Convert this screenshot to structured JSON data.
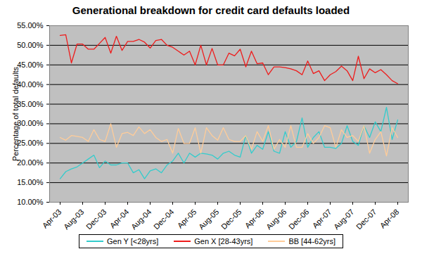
{
  "chart_data": {
    "type": "line",
    "title": "Generational breakdown for credit card defaults loaded",
    "y_label": "Percentage of total defaults",
    "categories": [
      "Apr-03",
      null,
      null,
      null,
      "Aug-03",
      null,
      null,
      null,
      "Dec-03",
      null,
      null,
      null,
      "Apr-04",
      null,
      null,
      null,
      "Aug-04",
      null,
      null,
      null,
      "Dec-04",
      null,
      null,
      null,
      "Apr-05",
      null,
      null,
      null,
      "Aug-05",
      null,
      null,
      null,
      "Dec-05",
      null,
      null,
      null,
      "Apr-06",
      null,
      null,
      null,
      "Aug-06",
      null,
      null,
      null,
      "Dec-06",
      null,
      null,
      null,
      "Apr-07",
      null,
      null,
      null,
      "Aug-07",
      null,
      null,
      null,
      "Dec-07",
      null,
      null,
      null,
      "Apr-08"
    ],
    "series": [
      {
        "name": "Gen Y [<28yrs]",
        "color": "#33cccc",
        "values": [
          16,
          17.8,
          18.5,
          19,
          20,
          21,
          22,
          18.8,
          20.5,
          19.5,
          19.5,
          20,
          20,
          17.5,
          18.3,
          16,
          18,
          18.5,
          17.5,
          19.5,
          20.5,
          22.5,
          20,
          22.5,
          21.5,
          22.5,
          22.3,
          22,
          21,
          22.5,
          23,
          22,
          21.5,
          27,
          22.5,
          24.5,
          23.5,
          28,
          23,
          22.5,
          28,
          24,
          25.5,
          31.5,
          24,
          26.5,
          28,
          24,
          24,
          23.7,
          25,
          29.5,
          25.5,
          24.5,
          29.5,
          26.5,
          30.5,
          28,
          34.2,
          26,
          31
        ]
      },
      {
        "name": "Gen X [28-43yrs]",
        "color": "#ee1c1c",
        "values": [
          52.5,
          52.7,
          45.5,
          50.3,
          50.3,
          49,
          49,
          50.5,
          52,
          48,
          52.3,
          48.7,
          51,
          51,
          51.5,
          50.8,
          49.3,
          51.2,
          51.5,
          50,
          49.5,
          48.5,
          47.5,
          48.5,
          45,
          50,
          45,
          49.2,
          45,
          45,
          48,
          47.3,
          49,
          44.5,
          48.5,
          45.3,
          45.5,
          42.5,
          44.5,
          44.5,
          44.3,
          44,
          43.5,
          42.5,
          46,
          42.8,
          43.5,
          41,
          42.5,
          43.3,
          44.7,
          43.5,
          41,
          47.2,
          41.5,
          44,
          43,
          43.8,
          42.5,
          41,
          40.2
        ]
      },
      {
        "name": "BB [44-62yrs]",
        "color": "#ffcc99",
        "values": [
          26.5,
          25.8,
          27,
          26.8,
          26.5,
          25.5,
          28.5,
          26,
          25.5,
          30,
          24,
          27.5,
          27.8,
          27,
          29.2,
          27.5,
          28.5,
          26.5,
          25.5,
          26,
          22.5,
          28.8,
          25,
          25,
          29,
          22.5,
          29,
          27,
          25.8,
          29,
          26,
          25.5,
          25.5,
          27,
          23.5,
          28,
          25.5,
          29.5,
          23.5,
          26,
          24,
          29.5,
          24,
          24,
          27.5,
          25,
          26.5,
          29.5,
          29,
          24,
          28.5,
          26.5,
          27,
          25.5,
          29.5,
          22.5,
          26,
          28,
          21.8,
          29,
          26.5
        ]
      }
    ],
    "ylim": [
      10,
      55
    ],
    "yticks": [
      {
        "value": 10,
        "label": "10.00%"
      },
      {
        "value": 15,
        "label": "15.00%"
      },
      {
        "value": 20,
        "label": "20.00%"
      },
      {
        "value": 25,
        "label": "25.00%"
      },
      {
        "value": 30,
        "label": "30.00%"
      },
      {
        "value": 35,
        "label": "35.00%"
      },
      {
        "value": 40,
        "label": "40.00%"
      },
      {
        "value": 45,
        "label": "45.00%"
      },
      {
        "value": 50,
        "label": "50.00%"
      },
      {
        "value": 55,
        "label": "55.00%"
      }
    ],
    "grid": true,
    "legend": "bottom"
  }
}
